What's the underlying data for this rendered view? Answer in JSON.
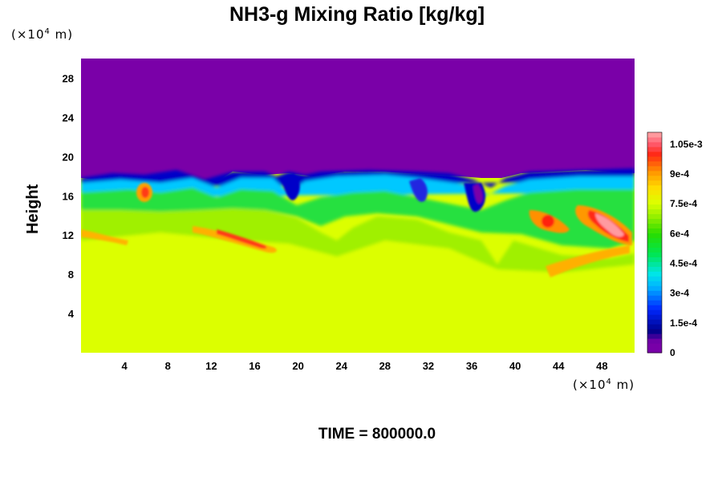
{
  "chart_data": {
    "type": "heatmap",
    "title": "NH3-g Mixing Ratio [kg/kg]",
    "xlabel": "",
    "ylabel": "Height",
    "x_unit_label": "(×10",
    "x_unit_exp": "4",
    "x_unit_tail": " m)",
    "y_unit_label": "(×10",
    "y_unit_exp": "4",
    "y_unit_tail": " m)",
    "xlim": [
      0,
      51
    ],
    "ylim": [
      0,
      30
    ],
    "x_ticks": [
      "4",
      "8",
      "12",
      "16",
      "20",
      "24",
      "28",
      "32",
      "36",
      "40",
      "44",
      "48"
    ],
    "y_ticks": [
      "4",
      "8",
      "12",
      "16",
      "20",
      "24",
      "28"
    ],
    "x_tick_values": [
      4,
      8,
      12,
      16,
      20,
      24,
      28,
      32,
      36,
      40,
      44,
      48
    ],
    "y_tick_values": [
      4,
      8,
      12,
      16,
      20,
      24,
      28
    ],
    "colorbar": {
      "range": [
        0,
        0.00111
      ],
      "tick_labels": [
        "0",
        "1.5e-4",
        "3e-4",
        "4.5e-4",
        "6e-4",
        "7.5e-4",
        "9e-4",
        "1.05e-3"
      ],
      "tick_values": [
        0,
        0.00015,
        0.0003,
        0.00045,
        0.0006,
        0.00075,
        0.0009,
        0.00105
      ]
    },
    "regions": {
      "upper_value": 0,
      "lower_value": 0.00072,
      "interface_height_approx": 17.5
    }
  },
  "footer": {
    "time_label": "TIME = 800000.0"
  },
  "colors": {
    "background_upper": "#7a00a8",
    "background_lower": "#dcff00"
  }
}
